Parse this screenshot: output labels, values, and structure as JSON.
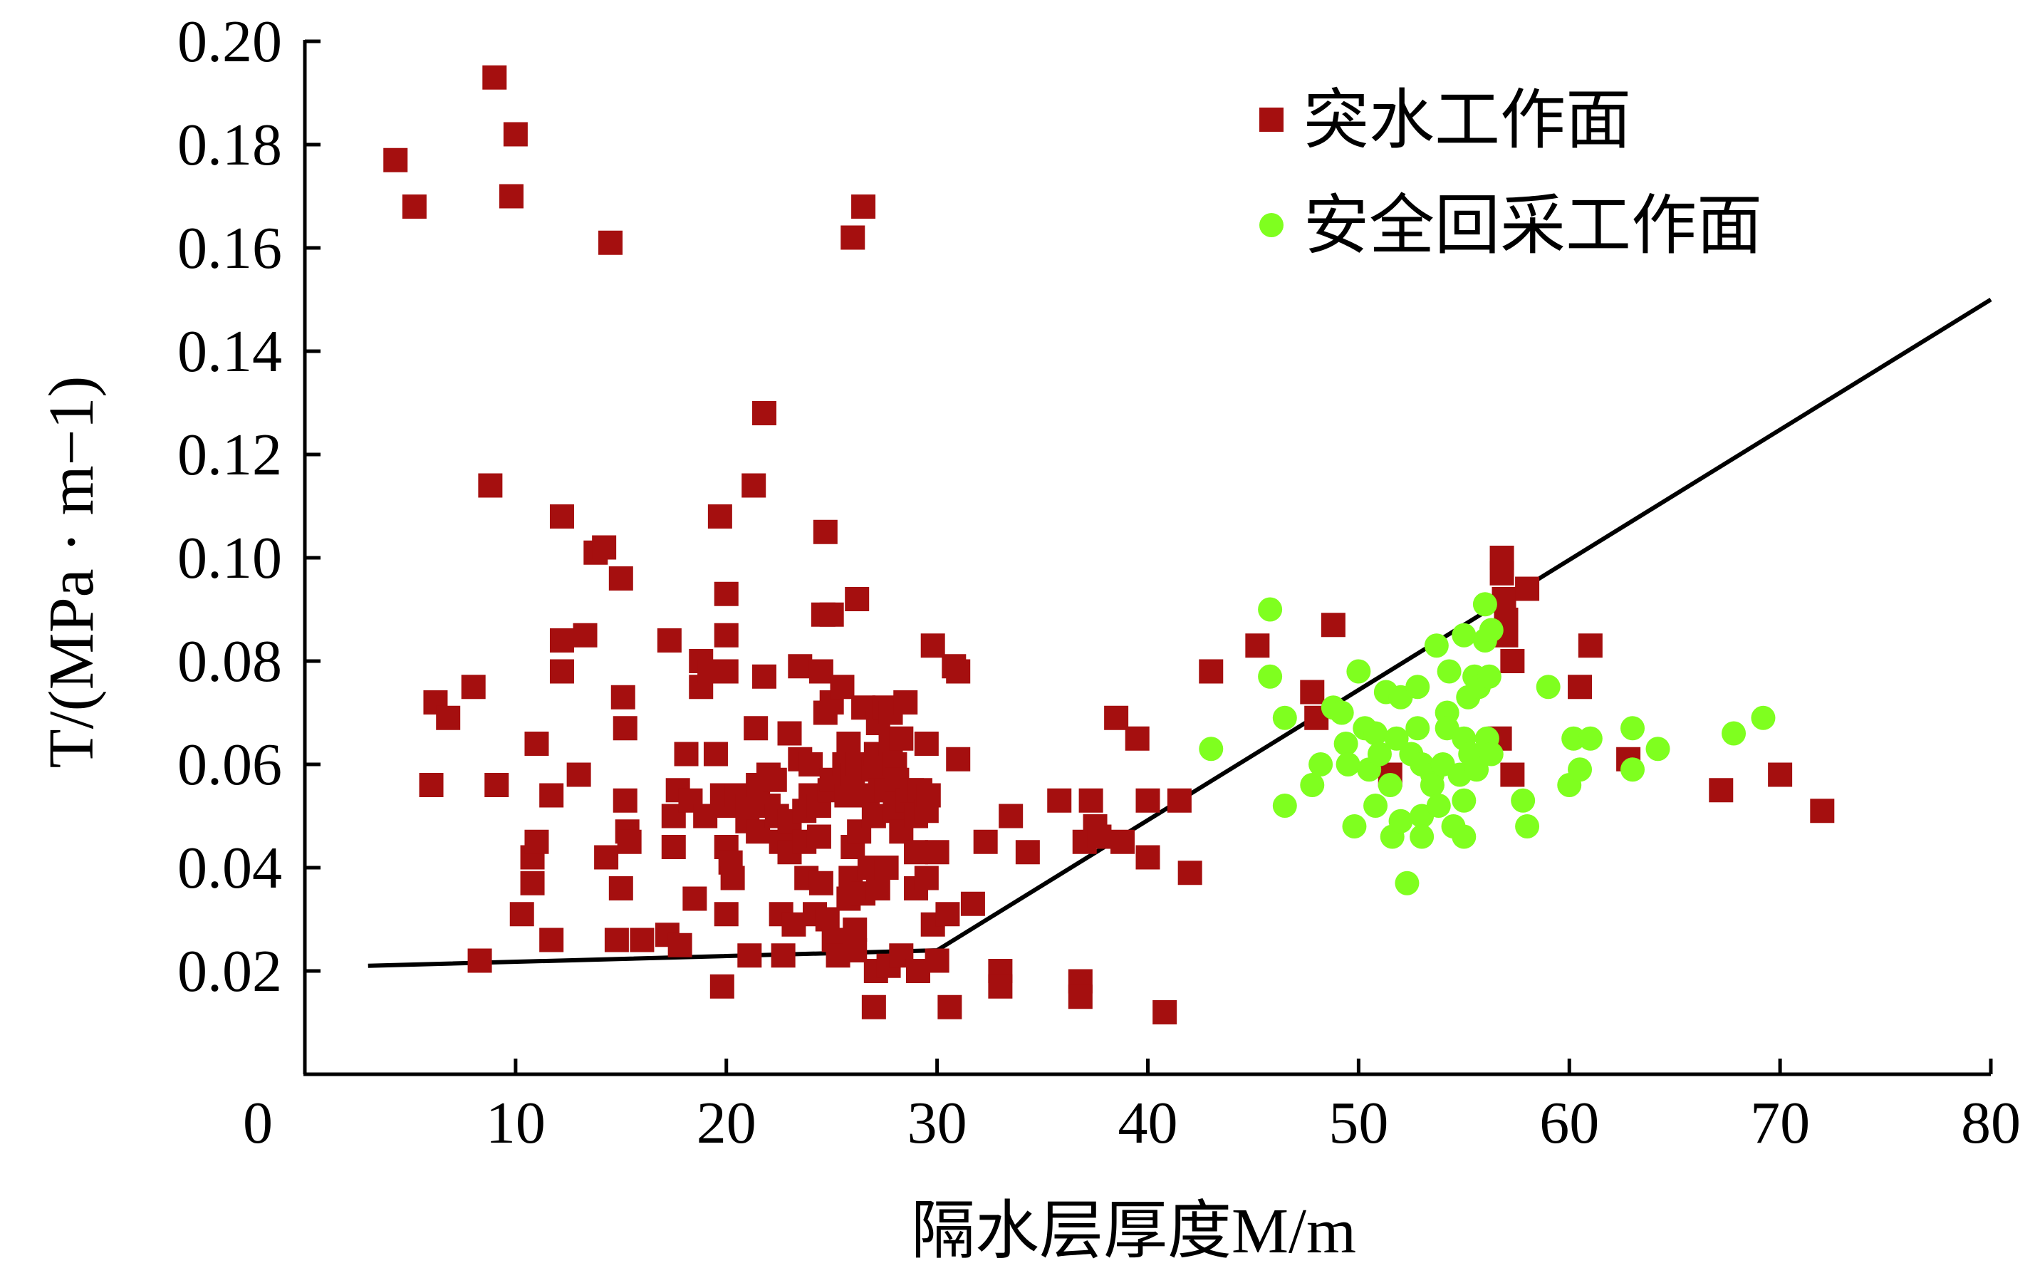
{
  "chart_data": {
    "type": "scatter",
    "xlabel": "隔水层厚度M/m",
    "ylabel": "T/(MPa · m−1)",
    "xlim": [
      0,
      80
    ],
    "ylim": [
      0,
      0.2
    ],
    "x_ticks": [
      "0",
      "10",
      "20",
      "30",
      "40",
      "50",
      "60",
      "70",
      "80"
    ],
    "y_ticks": [
      "0.02",
      "0.04",
      "0.06",
      "0.08",
      "0.10",
      "0.12",
      "0.14",
      "0.16",
      "0.18",
      "0.20"
    ],
    "legend_position": "top-right",
    "series": [
      {
        "name": "突水工作面",
        "marker": "square",
        "color": "#A50F0F",
        "points": [
          [
            4.3,
            0.177
          ],
          [
            5.2,
            0.168
          ],
          [
            9.0,
            0.193
          ],
          [
            10.0,
            0.182
          ],
          [
            9.8,
            0.17
          ],
          [
            14.5,
            0.161
          ],
          [
            26.0,
            0.162
          ],
          [
            26.5,
            0.168
          ],
          [
            6.0,
            0.056
          ],
          [
            6.2,
            0.072
          ],
          [
            6.8,
            0.069
          ],
          [
            8.0,
            0.075
          ],
          [
            8.3,
            0.022
          ],
          [
            8.8,
            0.114
          ],
          [
            9.1,
            0.056
          ],
          [
            10.3,
            0.031
          ],
          [
            10.8,
            0.042
          ],
          [
            10.8,
            0.037
          ],
          [
            11.0,
            0.064
          ],
          [
            11.0,
            0.045
          ],
          [
            11.7,
            0.026
          ],
          [
            11.7,
            0.054
          ],
          [
            12.2,
            0.108
          ],
          [
            12.2,
            0.084
          ],
          [
            12.2,
            0.078
          ],
          [
            13.0,
            0.058
          ],
          [
            13.3,
            0.085
          ],
          [
            13.8,
            0.101
          ],
          [
            14.2,
            0.102
          ],
          [
            14.3,
            0.042
          ],
          [
            14.8,
            0.026
          ],
          [
            15.0,
            0.036
          ],
          [
            15.0,
            0.096
          ],
          [
            15.1,
            0.073
          ],
          [
            15.2,
            0.067
          ],
          [
            15.2,
            0.053
          ],
          [
            15.3,
            0.047
          ],
          [
            15.4,
            0.045
          ],
          [
            16.0,
            0.026
          ],
          [
            17.2,
            0.027
          ],
          [
            17.3,
            0.084
          ],
          [
            17.5,
            0.05
          ],
          [
            17.5,
            0.044
          ],
          [
            17.7,
            0.055
          ],
          [
            17.8,
            0.025
          ],
          [
            18.1,
            0.062
          ],
          [
            18.3,
            0.053
          ],
          [
            18.5,
            0.034
          ],
          [
            18.8,
            0.08
          ],
          [
            18.8,
            0.075
          ],
          [
            19.0,
            0.05
          ],
          [
            19.2,
            0.078
          ],
          [
            19.5,
            0.062
          ],
          [
            19.7,
            0.108
          ],
          [
            19.8,
            0.054
          ],
          [
            19.8,
            0.017
          ],
          [
            20.0,
            0.093
          ],
          [
            20.0,
            0.085
          ],
          [
            20.0,
            0.078
          ],
          [
            20.0,
            0.052
          ],
          [
            20.0,
            0.044
          ],
          [
            20.0,
            0.031
          ],
          [
            20.2,
            0.041
          ],
          [
            20.3,
            0.038
          ],
          [
            20.5,
            0.054
          ],
          [
            21.0,
            0.052
          ],
          [
            21.0,
            0.049
          ],
          [
            21.1,
            0.023
          ],
          [
            21.3,
            0.114
          ],
          [
            21.4,
            0.067
          ],
          [
            21.5,
            0.056
          ],
          [
            21.5,
            0.047
          ],
          [
            21.8,
            0.128
          ],
          [
            21.8,
            0.077
          ],
          [
            22.0,
            0.058
          ],
          [
            22.0,
            0.052
          ],
          [
            22.3,
            0.057
          ],
          [
            22.4,
            0.05
          ],
          [
            22.6,
            0.045
          ],
          [
            22.6,
            0.031
          ],
          [
            22.7,
            0.023
          ],
          [
            23.0,
            0.066
          ],
          [
            23.0,
            0.049
          ],
          [
            23.0,
            0.043
          ],
          [
            23.2,
            0.029
          ],
          [
            23.5,
            0.079
          ],
          [
            23.5,
            0.061
          ],
          [
            23.7,
            0.051
          ],
          [
            23.7,
            0.045
          ],
          [
            23.8,
            0.038
          ],
          [
            24.0,
            0.06
          ],
          [
            24.0,
            0.054
          ],
          [
            24.2,
            0.031
          ],
          [
            24.4,
            0.052
          ],
          [
            24.4,
            0.046
          ],
          [
            24.5,
            0.078
          ],
          [
            24.5,
            0.037
          ],
          [
            24.6,
            0.089
          ],
          [
            24.7,
            0.105
          ],
          [
            24.7,
            0.07
          ],
          [
            24.8,
            0.03
          ],
          [
            24.9,
            0.055
          ],
          [
            25.0,
            0.089
          ],
          [
            25.0,
            0.072
          ],
          [
            25.0,
            0.057
          ],
          [
            25.1,
            0.026
          ],
          [
            25.3,
            0.023
          ],
          [
            25.5,
            0.075
          ],
          [
            25.6,
            0.06
          ],
          [
            25.7,
            0.054
          ],
          [
            25.8,
            0.064
          ],
          [
            25.8,
            0.034
          ],
          [
            25.9,
            0.038
          ],
          [
            26.0,
            0.058
          ],
          [
            26.0,
            0.044
          ],
          [
            26.1,
            0.028
          ],
          [
            26.1,
            0.024
          ],
          [
            26.2,
            0.092
          ],
          [
            26.2,
            0.06
          ],
          [
            26.3,
            0.047
          ],
          [
            26.5,
            0.071
          ],
          [
            26.5,
            0.035
          ],
          [
            26.5,
            0.06
          ],
          [
            26.7,
            0.054
          ],
          [
            26.8,
            0.04
          ],
          [
            27.0,
            0.059
          ],
          [
            27.0,
            0.05
          ],
          [
            27.0,
            0.013
          ],
          [
            27.1,
            0.062
          ],
          [
            27.1,
            0.02
          ],
          [
            27.2,
            0.036
          ],
          [
            27.2,
            0.068
          ],
          [
            27.3,
            0.055
          ],
          [
            27.5,
            0.071
          ],
          [
            27.6,
            0.055
          ],
          [
            27.6,
            0.04
          ],
          [
            27.7,
            0.021
          ],
          [
            27.8,
            0.07
          ],
          [
            27.8,
            0.064
          ],
          [
            28.0,
            0.06
          ],
          [
            28.0,
            0.051
          ],
          [
            28.1,
            0.057
          ],
          [
            28.3,
            0.065
          ],
          [
            28.3,
            0.047
          ],
          [
            28.3,
            0.023
          ],
          [
            28.5,
            0.072
          ],
          [
            28.6,
            0.053
          ],
          [
            28.8,
            0.055
          ],
          [
            29.0,
            0.05
          ],
          [
            29.0,
            0.043
          ],
          [
            29.0,
            0.036
          ],
          [
            29.1,
            0.02
          ],
          [
            29.2,
            0.055
          ],
          [
            29.5,
            0.064
          ],
          [
            29.5,
            0.051
          ],
          [
            29.5,
            0.038
          ],
          [
            29.6,
            0.054
          ],
          [
            29.8,
            0.083
          ],
          [
            29.8,
            0.029
          ],
          [
            30.0,
            0.043
          ],
          [
            30.0,
            0.022
          ],
          [
            30.5,
            0.031
          ],
          [
            30.6,
            0.013
          ],
          [
            30.8,
            0.079
          ],
          [
            31.0,
            0.078
          ],
          [
            31.0,
            0.061
          ],
          [
            31.7,
            0.033
          ],
          [
            32.3,
            0.045
          ],
          [
            33.0,
            0.02
          ],
          [
            33.0,
            0.017
          ],
          [
            33.5,
            0.05
          ],
          [
            34.3,
            0.043
          ],
          [
            35.8,
            0.053
          ],
          [
            36.8,
            0.018
          ],
          [
            36.8,
            0.015
          ],
          [
            37.0,
            0.045
          ],
          [
            37.3,
            0.053
          ],
          [
            37.5,
            0.048
          ],
          [
            37.7,
            0.046
          ],
          [
            38.5,
            0.069
          ],
          [
            38.8,
            0.045
          ],
          [
            39.5,
            0.065
          ],
          [
            40.0,
            0.053
          ],
          [
            40.0,
            0.042
          ],
          [
            40.8,
            0.012
          ],
          [
            41.5,
            0.053
          ],
          [
            42.0,
            0.039
          ],
          [
            43.0,
            0.078
          ],
          [
            45.2,
            0.083
          ],
          [
            47.8,
            0.074
          ],
          [
            48.0,
            0.069
          ],
          [
            48.8,
            0.087
          ],
          [
            51.5,
            0.058
          ],
          [
            56.8,
            0.1
          ],
          [
            56.8,
            0.097
          ],
          [
            56.9,
            0.092
          ],
          [
            57.0,
            0.088
          ],
          [
            57.0,
            0.085
          ],
          [
            57.3,
            0.08
          ],
          [
            56.7,
            0.065
          ],
          [
            57.3,
            0.058
          ],
          [
            58.0,
            0.094
          ],
          [
            60.5,
            0.075
          ],
          [
            61.0,
            0.083
          ],
          [
            62.8,
            0.061
          ],
          [
            67.2,
            0.055
          ],
          [
            70.0,
            0.058
          ],
          [
            72.0,
            0.051
          ]
        ]
      },
      {
        "name": "安全回采工作面",
        "marker": "circle",
        "color": "#7FFF1F",
        "points": [
          [
            43.0,
            0.063
          ],
          [
            45.8,
            0.09
          ],
          [
            45.8,
            0.077
          ],
          [
            46.5,
            0.069
          ],
          [
            46.5,
            0.052
          ],
          [
            47.8,
            0.056
          ],
          [
            48.2,
            0.06
          ],
          [
            48.8,
            0.071
          ],
          [
            49.2,
            0.07
          ],
          [
            49.4,
            0.064
          ],
          [
            49.5,
            0.06
          ],
          [
            49.8,
            0.048
          ],
          [
            50.0,
            0.078
          ],
          [
            50.3,
            0.067
          ],
          [
            50.5,
            0.059
          ],
          [
            50.8,
            0.066
          ],
          [
            50.8,
            0.052
          ],
          [
            51.0,
            0.062
          ],
          [
            51.3,
            0.074
          ],
          [
            51.5,
            0.056
          ],
          [
            51.6,
            0.046
          ],
          [
            51.8,
            0.065
          ],
          [
            52.0,
            0.073
          ],
          [
            52.0,
            0.049
          ],
          [
            52.3,
            0.037
          ],
          [
            52.5,
            0.062
          ],
          [
            52.8,
            0.075
          ],
          [
            52.8,
            0.067
          ],
          [
            53.0,
            0.06
          ],
          [
            53.0,
            0.05
          ],
          [
            53.0,
            0.046
          ],
          [
            53.5,
            0.058
          ],
          [
            53.5,
            0.056
          ],
          [
            53.7,
            0.083
          ],
          [
            53.8,
            0.052
          ],
          [
            54.0,
            0.06
          ],
          [
            54.2,
            0.07
          ],
          [
            54.2,
            0.067
          ],
          [
            54.3,
            0.078
          ],
          [
            54.5,
            0.048
          ],
          [
            54.8,
            0.058
          ],
          [
            55.0,
            0.085
          ],
          [
            55.0,
            0.065
          ],
          [
            55.0,
            0.053
          ],
          [
            55.0,
            0.046
          ],
          [
            55.2,
            0.073
          ],
          [
            55.3,
            0.062
          ],
          [
            55.5,
            0.077
          ],
          [
            55.6,
            0.059
          ],
          [
            55.7,
            0.075
          ],
          [
            56.0,
            0.091
          ],
          [
            56.0,
            0.084
          ],
          [
            56.1,
            0.065
          ],
          [
            56.2,
            0.077
          ],
          [
            56.3,
            0.062
          ],
          [
            56.3,
            0.086
          ],
          [
            57.8,
            0.053
          ],
          [
            58.0,
            0.048
          ],
          [
            59.0,
            0.075
          ],
          [
            60.0,
            0.056
          ],
          [
            60.2,
            0.065
          ],
          [
            60.5,
            0.059
          ],
          [
            61.0,
            0.065
          ],
          [
            63.0,
            0.067
          ],
          [
            63.0,
            0.059
          ],
          [
            64.2,
            0.063
          ],
          [
            67.8,
            0.066
          ],
          [
            69.2,
            0.069
          ]
        ]
      }
    ],
    "fit_line": {
      "color": "#000000",
      "points": [
        [
          3.0,
          0.021
        ],
        [
          30.0,
          0.024
        ],
        [
          80.0,
          0.15
        ]
      ]
    }
  }
}
